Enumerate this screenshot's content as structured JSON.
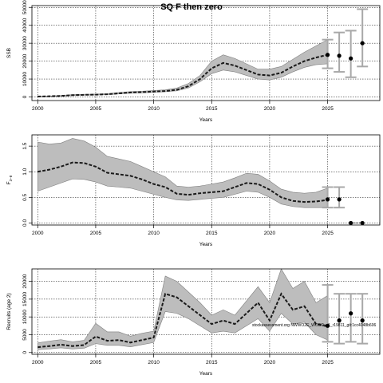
{
  "title": "SQ F then zero",
  "note": "stockassessment.org NWWO2E_WOSC_v1_r19811_git:1cc4048b606",
  "chart_data": [
    {
      "type": "line",
      "panel": "ssb",
      "ylabel": "SSB",
      "xlabel": "Years",
      "xlim": [
        1999.5,
        2029.5
      ],
      "ylim": [
        -2000,
        51000
      ],
      "xticks": [
        2000,
        2005,
        2010,
        2015,
        2020,
        2025
      ],
      "yticks": [
        0,
        10000,
        20000,
        30000,
        40000,
        50000
      ],
      "grid": true,
      "x": [
        2000,
        2001,
        2002,
        2003,
        2004,
        2005,
        2006,
        2007,
        2008,
        2009,
        2010,
        2011,
        2012,
        2013,
        2014,
        2015,
        2016,
        2017,
        2018,
        2019,
        2020,
        2021,
        2022,
        2023,
        2024,
        2025
      ],
      "estimate": [
        200,
        400,
        600,
        1000,
        1200,
        1300,
        1500,
        2000,
        2500,
        2700,
        3000,
        3300,
        4000,
        6000,
        10000,
        16000,
        19000,
        17500,
        15000,
        12500,
        12000,
        13500,
        17000,
        20000,
        22000,
        23500
      ],
      "lower": [
        100,
        300,
        500,
        800,
        1000,
        1100,
        1300,
        1700,
        2100,
        2300,
        2600,
        2900,
        3400,
        5000,
        8500,
        13000,
        15000,
        14000,
        12000,
        10000,
        9500,
        11000,
        14000,
        16500,
        18000,
        18500
      ],
      "upper": [
        300,
        500,
        800,
        1300,
        1500,
        1600,
        1800,
        2500,
        3000,
        3200,
        3600,
        4000,
        5000,
        7500,
        12000,
        20000,
        23500,
        21500,
        18500,
        15500,
        15500,
        17000,
        21000,
        25000,
        28500,
        32000
      ],
      "forecast": [
        {
          "x": 2025,
          "value": 23500,
          "low": 16000,
          "high": 32000
        },
        {
          "x": 2026,
          "value": 23000,
          "low": 14000,
          "high": 36000
        },
        {
          "x": 2027,
          "value": 21500,
          "low": 11000,
          "high": 37000
        },
        {
          "x": 2028,
          "value": 30000,
          "low": 17000,
          "high": 49000
        }
      ]
    },
    {
      "type": "line",
      "panel": "fbar",
      "ylabel": "F",
      "ylabel_sub": "3−8",
      "xlabel": "Years",
      "xlim": [
        1999.5,
        2029.5
      ],
      "ylim": [
        -0.04,
        1.72
      ],
      "xticks": [
        2000,
        2005,
        2010,
        2015,
        2020,
        2025
      ],
      "yticks": [
        0.0,
        0.5,
        1.0,
        1.5
      ],
      "grid": true,
      "x": [
        2000,
        2001,
        2002,
        2003,
        2004,
        2005,
        2006,
        2007,
        2008,
        2009,
        2010,
        2011,
        2012,
        2013,
        2014,
        2015,
        2016,
        2017,
        2018,
        2019,
        2020,
        2021,
        2022,
        2023,
        2024,
        2025
      ],
      "estimate": [
        1.0,
        1.04,
        1.1,
        1.18,
        1.17,
        1.1,
        0.98,
        0.95,
        0.92,
        0.85,
        0.76,
        0.7,
        0.57,
        0.55,
        0.58,
        0.6,
        0.62,
        0.7,
        0.78,
        0.76,
        0.65,
        0.5,
        0.43,
        0.41,
        0.42,
        0.45
      ],
      "lower": [
        0.62,
        0.7,
        0.78,
        0.86,
        0.85,
        0.8,
        0.72,
        0.7,
        0.68,
        0.62,
        0.56,
        0.5,
        0.45,
        0.44,
        0.46,
        0.48,
        0.5,
        0.56,
        0.62,
        0.6,
        0.5,
        0.37,
        0.32,
        0.3,
        0.3,
        0.3
      ],
      "upper": [
        1.58,
        1.54,
        1.56,
        1.65,
        1.6,
        1.48,
        1.3,
        1.25,
        1.2,
        1.1,
        1.0,
        0.9,
        0.72,
        0.7,
        0.72,
        0.76,
        0.8,
        0.88,
        0.97,
        0.95,
        0.82,
        0.66,
        0.6,
        0.58,
        0.6,
        0.68
      ],
      "forecast": [
        {
          "x": 2025,
          "value": 0.46,
          "low": 0.3,
          "high": 0.7
        },
        {
          "x": 2026,
          "value": 0.46,
          "low": 0.3,
          "high": 0.7
        },
        {
          "x": 2027,
          "value": 0.0,
          "low": 0.0,
          "high": 0.0
        },
        {
          "x": 2028,
          "value": 0.0,
          "low": 0.0,
          "high": 0.0
        }
      ]
    },
    {
      "type": "line",
      "panel": "recruits",
      "ylabel": "Recruits (age 2)",
      "xlabel": "Years",
      "xlim": [
        1999.5,
        2029.5
      ],
      "ylim": [
        -500,
        23500
      ],
      "xticks": [
        2000,
        2005,
        2010,
        2015,
        2020,
        2025
      ],
      "yticks": [
        0,
        5000,
        10000,
        15000,
        20000
      ],
      "grid": true,
      "x": [
        2000,
        2001,
        2002,
        2003,
        2004,
        2005,
        2006,
        2007,
        2008,
        2009,
        2010,
        2011,
        2012,
        2013,
        2014,
        2015,
        2016,
        2017,
        2018,
        2019,
        2020,
        2021,
        2022,
        2023,
        2024,
        2025
      ],
      "estimate": [
        1500,
        1800,
        2200,
        1800,
        2100,
        4500,
        3300,
        3500,
        2800,
        3500,
        4200,
        16500,
        15500,
        13000,
        10500,
        8000,
        9000,
        8000,
        11000,
        14000,
        9000,
        16500,
        12000,
        13000,
        8000,
        7500
      ],
      "lower": [
        800,
        1000,
        1300,
        1000,
        1200,
        2500,
        2000,
        2000,
        1600,
        2200,
        2800,
        11500,
        11000,
        9500,
        7500,
        5500,
        6000,
        5500,
        7500,
        9500,
        6000,
        11000,
        8000,
        8500,
        5000,
        3500
      ],
      "upper": [
        2700,
        3200,
        3600,
        3000,
        3400,
        8200,
        5800,
        5800,
        4600,
        5400,
        6000,
        21500,
        20000,
        17000,
        14000,
        10500,
        12000,
        10500,
        14500,
        18500,
        14000,
        23500,
        18000,
        20000,
        14000,
        16000
      ],
      "forecast": [
        {
          "x": 2025,
          "value": 7500,
          "low": 3000,
          "high": 19000
        },
        {
          "x": 2026,
          "value": 9000,
          "low": 2500,
          "high": 16500
        },
        {
          "x": 2027,
          "value": 11000,
          "low": 3000,
          "high": 16500
        },
        {
          "x": 2028,
          "value": 9000,
          "low": 2500,
          "high": 16500
        }
      ]
    }
  ]
}
